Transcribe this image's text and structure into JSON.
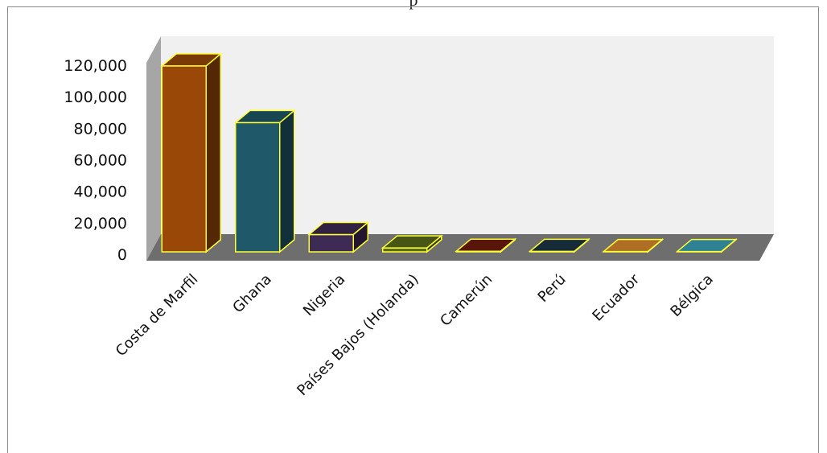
{
  "top_text": "p",
  "chart_data": {
    "type": "bar",
    "three_d": true,
    "title": "",
    "xlabel": "",
    "ylabel": "",
    "categories": [
      "Costa de Marfil",
      "Ghana",
      "Nigeria",
      "Países Bajos (Holanda)",
      "Camerún",
      "Perú",
      "Ecuador",
      "Bélgica"
    ],
    "values": [
      118000,
      82000,
      11000,
      2500,
      400,
      300,
      200,
      200
    ],
    "ylim": [
      0,
      120000
    ],
    "yticks": [
      0,
      20000,
      40000,
      60000,
      80000,
      100000,
      120000
    ],
    "ytick_labels": [
      "0",
      "20,000",
      "40,000",
      "60,000",
      "80,000",
      "100,000",
      "120,000"
    ],
    "grid": false,
    "legend": "none",
    "bar_outline": "#ffff33",
    "bar_colors": [
      "#994807",
      "#1f5868",
      "#3d2a55",
      "#5a6b1a",
      "#6e1b0c",
      "#1c3448",
      "#d98a2e",
      "#3ba3b8"
    ],
    "wall_color": "#f0f0f0",
    "side_wall_color": "#a6a6a6",
    "floor_color": "#6e6e6e"
  }
}
